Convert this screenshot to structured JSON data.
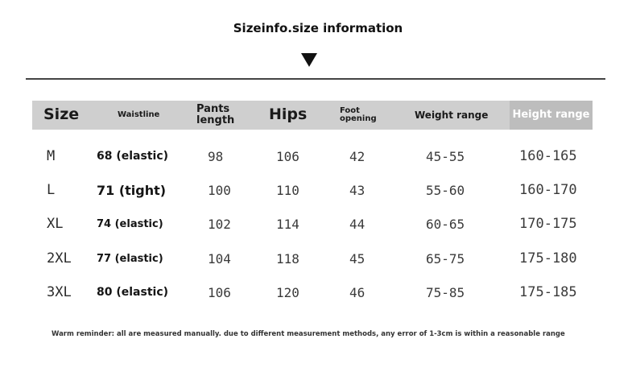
{
  "title": "Sizeinfo.size information",
  "headers": {
    "size": "Size",
    "waistline": "Waistline",
    "pants_length_line1": "Pants",
    "pants_length_line2": "length",
    "hips": "Hips",
    "foot_opening_line1": "Foot",
    "foot_opening_line2": "opening",
    "weight_range": "Weight range",
    "height_range": "Height range"
  },
  "rows": [
    {
      "size": "M",
      "waistline": "68 (elastic)",
      "pants_length": "98",
      "hips": "106",
      "foot_opening": "42",
      "weight": "45-55",
      "height": "160-165"
    },
    {
      "size": "L",
      "waistline": "71 (tight)",
      "pants_length": "100",
      "hips": "110",
      "foot_opening": "43",
      "weight": "55-60",
      "height": "160-170"
    },
    {
      "size": "XL",
      "waistline": "74 (elastic)",
      "pants_length": "102",
      "hips": "114",
      "foot_opening": "44",
      "weight": "60-65",
      "height": "170-175"
    },
    {
      "size": "2XL",
      "waistline": "77 (elastic)",
      "pants_length": "104",
      "hips": "118",
      "foot_opening": "45",
      "weight": "65-75",
      "height": "175-180"
    },
    {
      "size": "3XL",
      "waistline": "80 (elastic)",
      "pants_length": "106",
      "hips": "120",
      "foot_opening": "46",
      "weight": "75-85",
      "height": "175-185"
    }
  ],
  "note": "Warm reminder: all are measured manually. due to different measurement methods, any error of 1-3cm is within a reasonable range"
}
